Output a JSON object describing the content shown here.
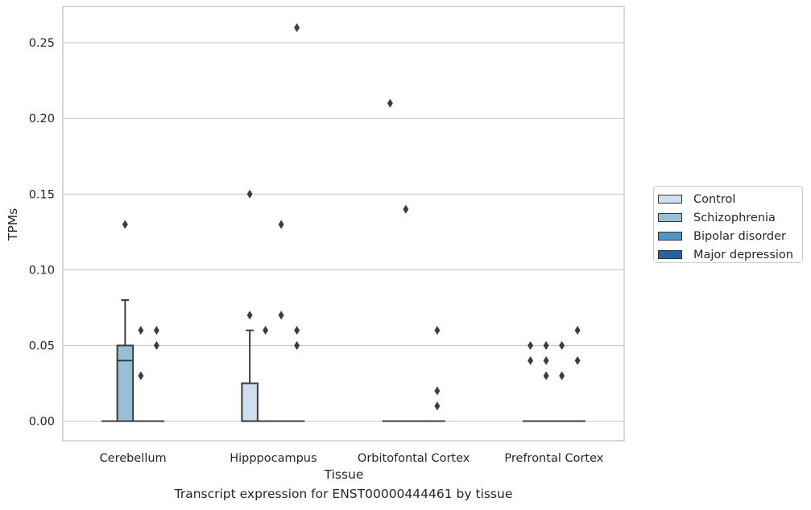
{
  "chart_data": {
    "type": "box",
    "xlabel": "Tissue",
    "ylabel": "TPMs",
    "caption": "Transcript expression for ENST00000444461 by tissue",
    "ylim": [
      -0.013,
      0.274
    ],
    "yticks": [
      "0.00",
      "0.05",
      "0.10",
      "0.15",
      "0.20",
      "0.25"
    ],
    "ytick_values": [
      0,
      0.05,
      0.1,
      0.15,
      0.2,
      0.25
    ],
    "grid": "horizontal",
    "legend_placement": "right",
    "categories": [
      "Cerebellum",
      "Hipppocampus",
      "Orbitofontal Cortex",
      "Prefrontal Cortex"
    ],
    "series": [
      {
        "name": "Control",
        "color": "#d0dff0",
        "boxes": [
          {
            "q1": 0,
            "median": 0,
            "q3": 0,
            "whislo": 0,
            "whishi": 0,
            "fliers": []
          },
          {
            "q1": 0,
            "median": 0,
            "q3": 0.025,
            "whislo": 0,
            "whishi": 0.06,
            "fliers": [
              0.07,
              0.15
            ]
          },
          {
            "q1": 0,
            "median": 0,
            "q3": 0,
            "whislo": 0,
            "whishi": 0,
            "fliers": [
              0.21
            ]
          },
          {
            "q1": 0,
            "median": 0,
            "q3": 0,
            "whislo": 0,
            "whishi": 0,
            "fliers": [
              0.04,
              0.05
            ]
          }
        ]
      },
      {
        "name": "Schizophrenia",
        "color": "#98bfd8",
        "boxes": [
          {
            "q1": 0,
            "median": 0.04,
            "q3": 0.05,
            "whislo": 0,
            "whishi": 0.08,
            "fliers": [
              0.13
            ]
          },
          {
            "q1": 0,
            "median": 0,
            "q3": 0,
            "whislo": 0,
            "whishi": 0,
            "fliers": [
              0.06
            ]
          },
          {
            "q1": 0,
            "median": 0,
            "q3": 0,
            "whislo": 0,
            "whishi": 0,
            "fliers": [
              0.14
            ]
          },
          {
            "q1": 0,
            "median": 0,
            "q3": 0,
            "whislo": 0,
            "whishi": 0,
            "fliers": [
              0.03,
              0.04,
              0.05
            ]
          }
        ]
      },
      {
        "name": "Bipolar disorder",
        "color": "#5196c2",
        "boxes": [
          {
            "q1": 0,
            "median": 0,
            "q3": 0,
            "whislo": 0,
            "whishi": 0,
            "fliers": [
              0.03,
              0.06
            ]
          },
          {
            "q1": 0,
            "median": 0,
            "q3": 0,
            "whislo": 0,
            "whishi": 0,
            "fliers": [
              0.07,
              0.13
            ]
          },
          {
            "q1": 0,
            "median": 0,
            "q3": 0,
            "whislo": 0,
            "whishi": 0,
            "fliers": []
          },
          {
            "q1": 0,
            "median": 0,
            "q3": 0,
            "whislo": 0,
            "whishi": 0,
            "fliers": [
              0.03,
              0.05
            ]
          }
        ]
      },
      {
        "name": "Major depression",
        "color": "#2164a8",
        "boxes": [
          {
            "q1": 0,
            "median": 0,
            "q3": 0,
            "whislo": 0,
            "whishi": 0,
            "fliers": [
              0.05,
              0.06
            ]
          },
          {
            "q1": 0,
            "median": 0,
            "q3": 0,
            "whislo": 0,
            "whishi": 0,
            "fliers": [
              0.05,
              0.06,
              0.26
            ]
          },
          {
            "q1": 0,
            "median": 0,
            "q3": 0,
            "whislo": 0,
            "whishi": 0,
            "fliers": [
              0.01,
              0.02,
              0.06
            ]
          },
          {
            "q1": 0,
            "median": 0,
            "q3": 0,
            "whislo": 0,
            "whishi": 0,
            "fliers": [
              0.04,
              0.06
            ]
          }
        ]
      }
    ]
  }
}
